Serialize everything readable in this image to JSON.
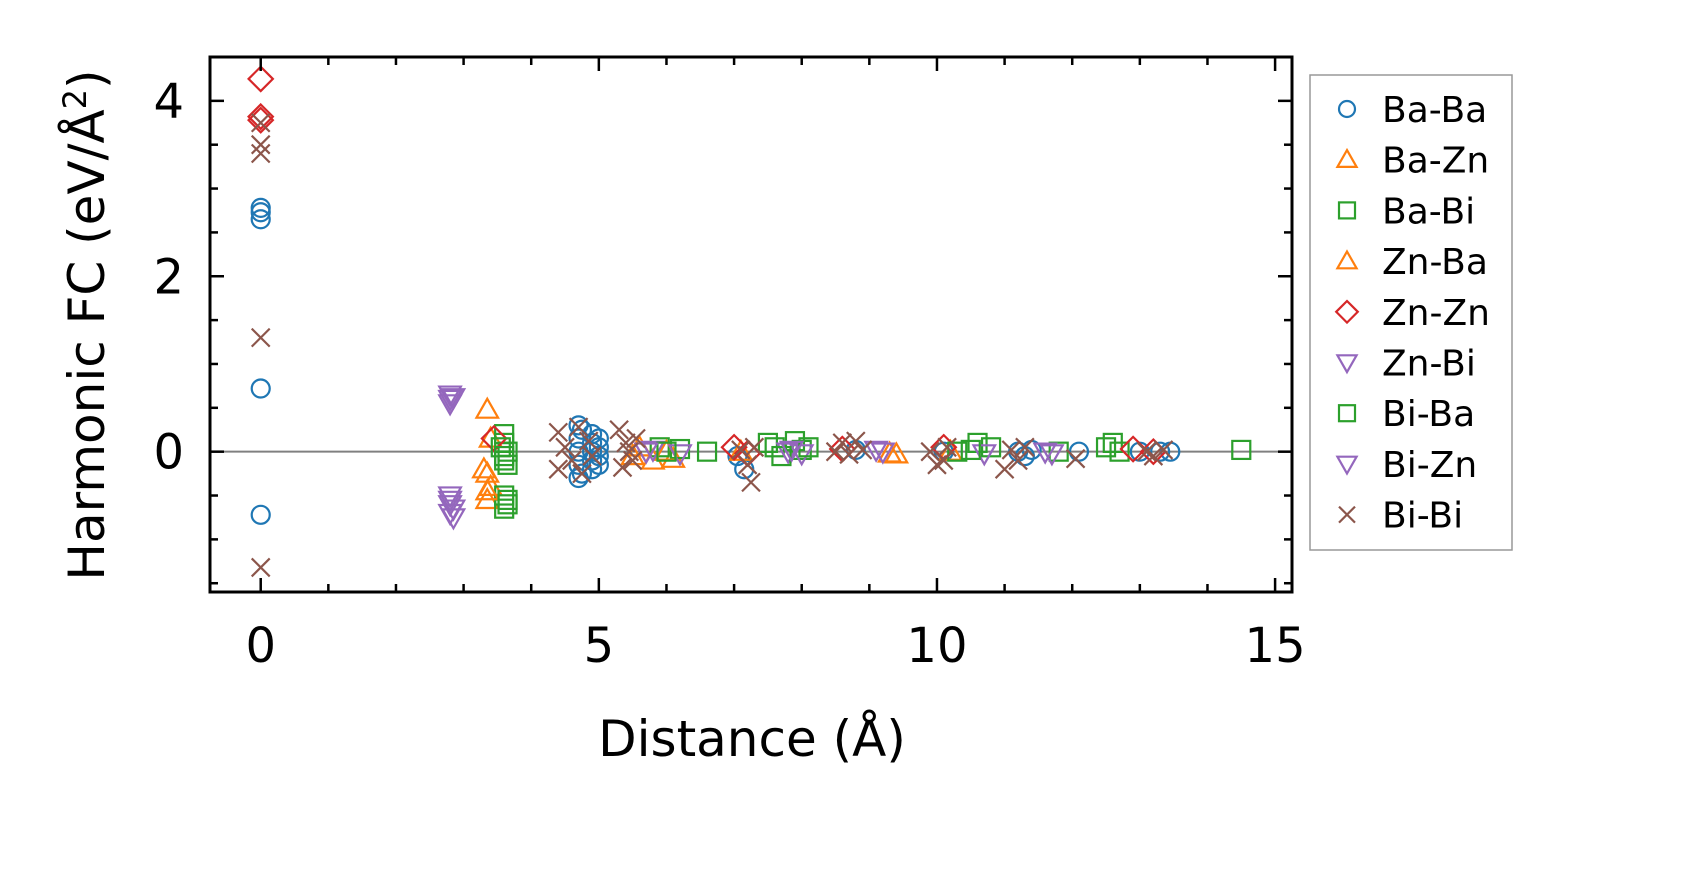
{
  "chart_data": {
    "type": "scatter",
    "xlabel": "Distance (Å)",
    "ylabel": {
      "main": "Harmonic FC (eV/Å",
      "sup": "2",
      "close": ")"
    },
    "xlim": [
      -0.75,
      15.25
    ],
    "ylim": [
      -1.6,
      4.5
    ],
    "xticks": [
      0,
      5,
      10,
      15
    ],
    "yticks": [
      0,
      2,
      4
    ],
    "xtick_labels": [
      "0",
      "5",
      "10",
      "15"
    ],
    "ytick_labels": [
      "0",
      "2",
      "4"
    ],
    "reference_line_y": 0,
    "legend_position": "outside-right",
    "series": [
      {
        "name": "Ba-Ba",
        "marker": "circle",
        "filled": false,
        "color": "#1f77b4",
        "points": [
          [
            0,
            2.78
          ],
          [
            0,
            2.73
          ],
          [
            0,
            2.65
          ],
          [
            0,
            0.72
          ],
          [
            0,
            -0.72
          ],
          [
            4.7,
            0.3
          ],
          [
            4.7,
            0.15
          ],
          [
            4.7,
            0.0
          ],
          [
            4.7,
            -0.15
          ],
          [
            4.7,
            -0.3
          ],
          [
            4.75,
            0.25
          ],
          [
            4.75,
            -0.25
          ],
          [
            4.9,
            0.2
          ],
          [
            4.9,
            0.1
          ],
          [
            4.9,
            0.0
          ],
          [
            4.9,
            -0.1
          ],
          [
            4.9,
            -0.2
          ],
          [
            5.0,
            0.15
          ],
          [
            5.0,
            -0.15
          ],
          [
            5.0,
            0.05
          ],
          [
            5.0,
            -0.05
          ],
          [
            7.05,
            -0.05
          ],
          [
            7.15,
            -0.2
          ],
          [
            8.8,
            0.02
          ],
          [
            10.1,
            0.0
          ],
          [
            11.2,
            0.0
          ],
          [
            11.3,
            -0.05
          ],
          [
            11.4,
            0.02
          ],
          [
            12.1,
            0.0
          ],
          [
            13.0,
            0.0
          ],
          [
            13.3,
            0.0
          ],
          [
            13.45,
            0.0
          ]
        ]
      },
      {
        "name": "Ba-Zn",
        "marker": "triangle-up",
        "filled": false,
        "color": "#ff7f0e",
        "points": [
          [
            3.35,
            0.48
          ],
          [
            3.4,
            0.15
          ],
          [
            3.35,
            -0.25
          ],
          [
            3.4,
            -0.4
          ],
          [
            3.35,
            -0.55
          ],
          [
            5.5,
            -0.05
          ],
          [
            5.8,
            -0.1
          ],
          [
            6.1,
            -0.08
          ],
          [
            7.1,
            0.0
          ],
          [
            9.3,
            -0.02
          ],
          [
            10.2,
            0.0
          ]
        ]
      },
      {
        "name": "Ba-Bi",
        "marker": "square",
        "filled": false,
        "color": "#2ca02c",
        "points": [
          [
            3.6,
            0.2
          ],
          [
            3.6,
            0.1
          ],
          [
            3.65,
            0.0
          ],
          [
            3.6,
            -0.1
          ],
          [
            3.65,
            -0.15
          ],
          [
            3.6,
            -0.5
          ],
          [
            3.65,
            -0.6
          ],
          [
            3.6,
            -0.65
          ],
          [
            5.9,
            0.05
          ],
          [
            6.2,
            0.03
          ],
          [
            6.6,
            0.0
          ],
          [
            7.5,
            0.1
          ],
          [
            7.6,
            0.05
          ],
          [
            7.9,
            0.12
          ],
          [
            8.0,
            0.02
          ],
          [
            10.6,
            0.1
          ],
          [
            10.8,
            0.05
          ],
          [
            11.8,
            0.0
          ],
          [
            12.6,
            0.1
          ],
          [
            12.7,
            0.0
          ],
          [
            14.5,
            0.02
          ]
        ]
      },
      {
        "name": "Zn-Ba",
        "marker": "triangle-up",
        "filled": false,
        "color": "#ff7f0e",
        "points": [
          [
            3.3,
            -0.2
          ],
          [
            3.35,
            -0.45
          ],
          [
            5.6,
            0.05
          ],
          [
            6.0,
            0.0
          ],
          [
            9.4,
            -0.03
          ]
        ]
      },
      {
        "name": "Zn-Zn",
        "marker": "diamond",
        "filled": false,
        "color": "#d62728",
        "points": [
          [
            0,
            4.25
          ],
          [
            0,
            3.82
          ],
          [
            0,
            3.78
          ],
          [
            3.45,
            0.15
          ],
          [
            7.0,
            0.05
          ],
          [
            7.2,
            -0.02
          ],
          [
            8.6,
            0.03
          ],
          [
            10.1,
            0.05
          ],
          [
            12.9,
            0.03
          ],
          [
            13.2,
            0.0
          ]
        ]
      },
      {
        "name": "Zn-Bi",
        "marker": "triangle-down",
        "filled": false,
        "color": "#9467bd",
        "points": [
          [
            2.8,
            0.65
          ],
          [
            2.8,
            0.6
          ],
          [
            2.8,
            0.55
          ],
          [
            2.8,
            -0.5
          ],
          [
            2.8,
            -0.55
          ],
          [
            2.8,
            -0.6
          ],
          [
            2.8,
            -0.7
          ],
          [
            5.8,
            0.02
          ],
          [
            6.2,
            -0.02
          ],
          [
            7.8,
            0.0
          ],
          [
            8.0,
            -0.02
          ],
          [
            9.1,
            0.02
          ],
          [
            10.7,
            -0.02
          ],
          [
            11.7,
            -0.02
          ]
        ]
      },
      {
        "name": "Bi-Ba",
        "marker": "square",
        "filled": false,
        "color": "#2ca02c",
        "points": [
          [
            3.55,
            0.05
          ],
          [
            3.6,
            -0.05
          ],
          [
            3.65,
            -0.55
          ],
          [
            6.0,
            0.0
          ],
          [
            7.7,
            -0.05
          ],
          [
            8.1,
            0.05
          ],
          [
            10.3,
            0.0
          ],
          [
            10.5,
            0.02
          ],
          [
            12.5,
            0.05
          ]
        ]
      },
      {
        "name": "Bi-Zn",
        "marker": "triangle-down",
        "filled": false,
        "color": "#9467bd",
        "points": [
          [
            2.85,
            0.62
          ],
          [
            2.85,
            -0.65
          ],
          [
            2.85,
            -0.75
          ],
          [
            5.7,
            0.0
          ],
          [
            7.85,
            0.02
          ],
          [
            9.2,
            0.0
          ],
          [
            11.6,
            0.0
          ]
        ]
      },
      {
        "name": "Bi-Bi",
        "marker": "x",
        "filled": false,
        "color": "#8c564b",
        "points": [
          [
            0,
            3.75
          ],
          [
            0,
            3.5
          ],
          [
            0,
            3.4
          ],
          [
            0,
            1.3
          ],
          [
            0,
            -1.32
          ],
          [
            4.4,
            0.22
          ],
          [
            4.4,
            -0.2
          ],
          [
            4.5,
            0.05
          ],
          [
            4.6,
            -0.1
          ],
          [
            4.7,
            0.28
          ],
          [
            4.75,
            -0.25
          ],
          [
            4.85,
            0.12
          ],
          [
            4.9,
            -0.05
          ],
          [
            5.3,
            0.25
          ],
          [
            5.35,
            -0.18
          ],
          [
            5.4,
            0.1
          ],
          [
            5.45,
            0.0
          ],
          [
            5.5,
            -0.1
          ],
          [
            5.55,
            0.15
          ],
          [
            7.1,
            0.02
          ],
          [
            7.2,
            -0.15
          ],
          [
            7.25,
            -0.35
          ],
          [
            7.3,
            0.05
          ],
          [
            8.5,
            0.0
          ],
          [
            8.6,
            0.1
          ],
          [
            8.7,
            -0.03
          ],
          [
            8.8,
            0.12
          ],
          [
            8.9,
            0.02
          ],
          [
            9.9,
            0.0
          ],
          [
            10.0,
            -0.15
          ],
          [
            10.1,
            -0.1
          ],
          [
            10.15,
            0.05
          ],
          [
            11.0,
            -0.2
          ],
          [
            11.1,
            0.02
          ],
          [
            11.2,
            -0.1
          ],
          [
            11.3,
            0.05
          ],
          [
            12.05,
            -0.08
          ],
          [
            13.1,
            0.0
          ],
          [
            13.2,
            -0.05
          ],
          [
            13.35,
            0.02
          ]
        ]
      }
    ]
  }
}
